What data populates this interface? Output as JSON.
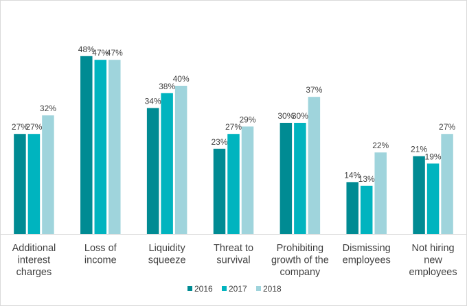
{
  "chart_data": {
    "type": "bar",
    "title": "",
    "xlabel": "",
    "ylabel": "",
    "ylim": [
      0,
      50
    ],
    "grid": false,
    "legend_position": "bottom",
    "value_suffix": "%",
    "categories": [
      [
        "Additional",
        "interest",
        "charges"
      ],
      [
        "Loss of",
        "income"
      ],
      [
        "Liquidity",
        "squeeze"
      ],
      [
        "Threat to",
        "survival"
      ],
      [
        "Prohibiting",
        "growth of the",
        "company"
      ],
      [
        "Dismissing",
        "employees"
      ],
      [
        "Not hiring",
        "new",
        "employees"
      ]
    ],
    "series": [
      {
        "name": "2016",
        "color": "#008b93",
        "values": [
          27,
          48,
          34,
          23,
          30,
          14,
          21
        ]
      },
      {
        "name": "2017",
        "color": "#00b4bf",
        "values": [
          27,
          47,
          38,
          27,
          30,
          13,
          19
        ]
      },
      {
        "name": "2018",
        "color": "#9fd4dc",
        "values": [
          32,
          47,
          40,
          29,
          37,
          22,
          27
        ]
      }
    ]
  }
}
